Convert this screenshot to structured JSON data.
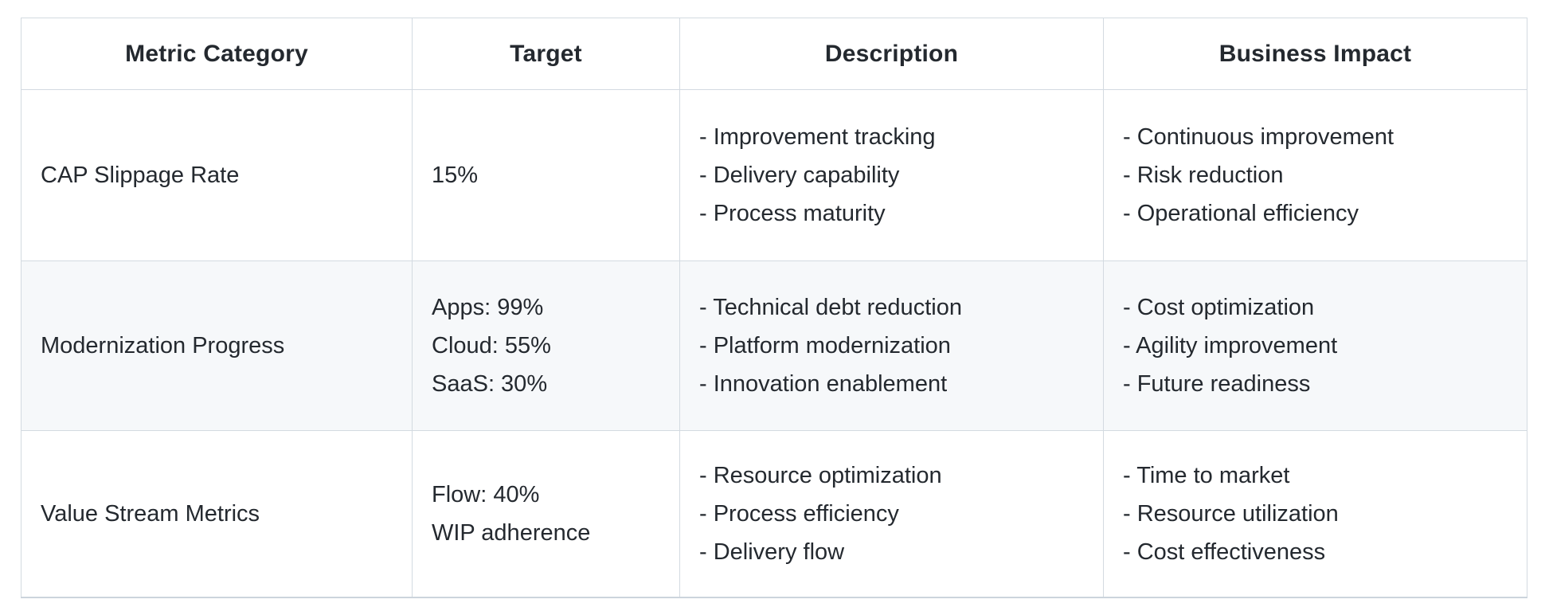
{
  "table": {
    "headers": [
      "Metric Category",
      "Target",
      "Description",
      "Business Impact"
    ],
    "rows": [
      {
        "category": "CAP Slippage Rate",
        "target_lines": [
          "15%"
        ],
        "description_lines": [
          "- Improvement tracking",
          "- Delivery capability",
          "- Process maturity"
        ],
        "impact_lines": [
          "- Continuous improvement",
          "- Risk reduction",
          "- Operational efficiency"
        ]
      },
      {
        "category": "Modernization Progress",
        "target_lines": [
          "Apps: 99%",
          "Cloud: 55%",
          "SaaS: 30%"
        ],
        "description_lines": [
          "- Technical debt reduction",
          "- Platform modernization",
          "- Innovation enablement"
        ],
        "impact_lines": [
          "- Cost optimization",
          "- Agility improvement",
          "- Future readiness"
        ]
      },
      {
        "category": "Value Stream Metrics",
        "target_lines": [
          "Flow: 40%",
          "WIP adherence"
        ],
        "description_lines": [
          "- Resource optimization",
          "- Process efficiency",
          "- Delivery flow"
        ],
        "impact_lines": [
          "- Time to market",
          "- Resource utilization",
          "- Cost effectiveness"
        ]
      }
    ]
  },
  "colors": {
    "text": "#24292f",
    "grid_border": "#d3dae1",
    "bottom_border": "#ccd4dc",
    "row_alt_background": "#f6f8fa",
    "background": "#ffffff"
  }
}
